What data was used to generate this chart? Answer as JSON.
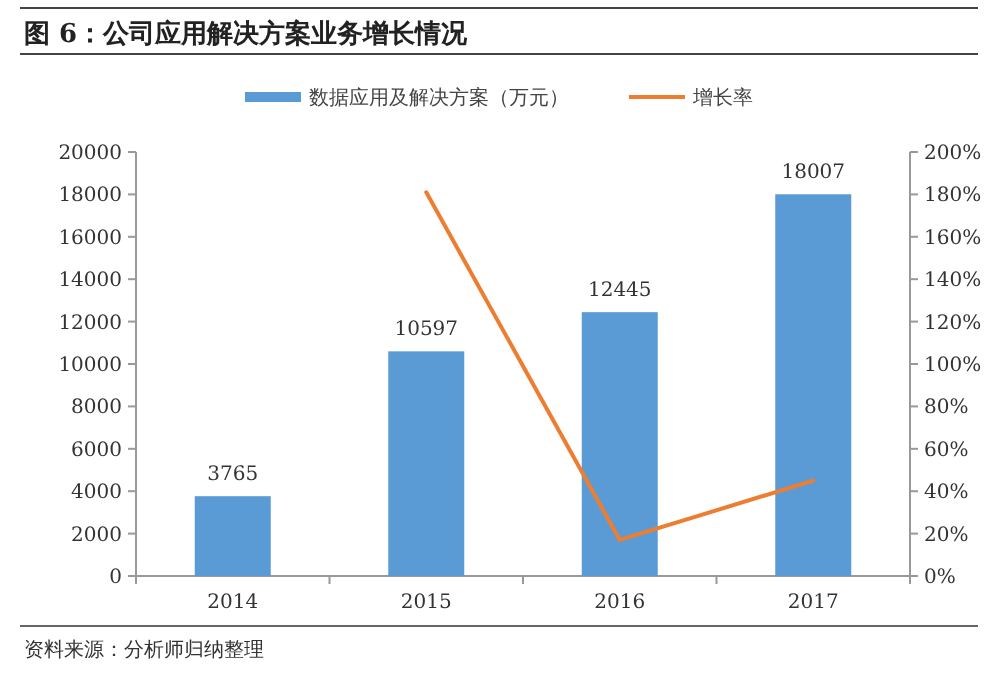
{
  "chart_data": {
    "type": "bar",
    "title": "图 6：公司应用解决方案业务增长情况",
    "categories": [
      "2014",
      "2015",
      "2016",
      "2017"
    ],
    "series": [
      {
        "name": "数据应用及解决方案（万元）",
        "color": "#5b9bd5",
        "values": [
          3765,
          10597,
          12445,
          18007
        ],
        "value_labels": [
          "3765",
          "10597",
          "12445",
          "18007"
        ]
      },
      {
        "name": "增长率",
        "type": "line",
        "axis": "y2",
        "color": "#ed7d31",
        "values": [
          null,
          181,
          17,
          45
        ]
      }
    ],
    "ylim": [
      0,
      20000
    ],
    "yticks": [
      0,
      2000,
      4000,
      6000,
      8000,
      10000,
      12000,
      14000,
      16000,
      18000,
      20000
    ],
    "y2lim": [
      0,
      200
    ],
    "y2ticks": [
      {
        "value": 0,
        "label": "0%"
      },
      {
        "value": 20,
        "label": "20%"
      },
      {
        "value": 40,
        "label": "40%"
      },
      {
        "value": 60,
        "label": "60%"
      },
      {
        "value": 80,
        "label": "80%"
      },
      {
        "value": 100,
        "label": "100%"
      },
      {
        "value": 120,
        "label": "120%"
      },
      {
        "value": 140,
        "label": "140%"
      },
      {
        "value": 160,
        "label": "160%"
      },
      {
        "value": 180,
        "label": "180%"
      },
      {
        "value": 200,
        "label": "200%"
      }
    ],
    "legend": "top",
    "grid": false,
    "marker": "none",
    "line_style": "solid",
    "annotations": [
      "资料来源：分析师归纳整理"
    ]
  }
}
